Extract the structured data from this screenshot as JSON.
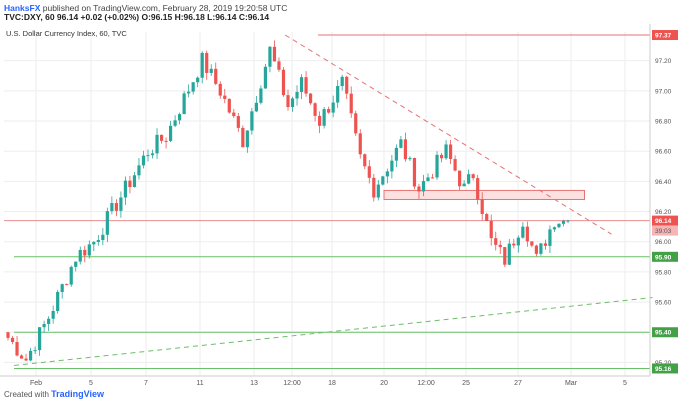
{
  "header": {
    "author": "HanksFX",
    "published_text": " published on TradingView.com, February 28, 2019 19:20:58 UTC",
    "ticker_line": "TVC:DXY, 60  96.14  +0.02 (+0.02%)  O:96.15  H:96.18  L:96.14  C:96.14"
  },
  "footer": {
    "created_with": "Created with",
    "logo": "TradingView"
  },
  "colors": {
    "bull": "#26a69a",
    "bear": "#ef5350",
    "level_green": "#6abf69",
    "red_line": "#e57373",
    "zone_fill": "#fde0e0",
    "label_green": "#43a047",
    "label_red": "#ef5350"
  },
  "chart_data": {
    "type": "candlestick",
    "title": "U.S. Dollar Currency Index, 60, TVC",
    "ylim": [
      95.11,
      97.39
    ],
    "ytick_values": [
      95.2,
      95.4,
      95.6,
      95.8,
      96.0,
      96.2,
      96.4,
      96.6,
      96.8,
      97.0,
      97.2
    ],
    "ytick_labels": [
      "95.20",
      "95.40",
      "95.60",
      "95.80",
      "96.00",
      "96.20",
      "96.40",
      "96.60",
      "96.80",
      "97.00",
      "97.20"
    ],
    "xtick_labels": [
      "Feb",
      "5",
      "7",
      "11",
      "13",
      "12:00",
      "18",
      "20",
      "12:00",
      "25",
      "27",
      "Mar",
      "5"
    ],
    "levels": [
      {
        "name": "resistance-97-37",
        "value": 97.37,
        "label": "97.37",
        "color": "red"
      },
      {
        "name": "support-95-90",
        "value": 95.9,
        "label": "95.90",
        "color": "green"
      },
      {
        "name": "support-95-40",
        "value": 95.4,
        "label": "95.40",
        "color": "green"
      },
      {
        "name": "support-95-16",
        "value": 95.16,
        "label": "95.16",
        "color": "green"
      }
    ],
    "current_price": {
      "value": 96.14,
      "label": "96.14",
      "countdown": "39:03"
    },
    "zone": {
      "from_date": "2019-02-20",
      "to_date": "2019-03-02",
      "low": 96.28,
      "high": 96.34
    },
    "trendlines": [
      {
        "name": "descending-trendline",
        "from_date": "2019-02-15",
        "from_value": 97.37,
        "to_date": "2019-03-04",
        "to_value": 96.05
      },
      {
        "name": "ascending-trendline",
        "from_date": "2019-02-01",
        "from_value": 95.18,
        "to_date": "2019-03-06",
        "to_value": 95.63
      }
    ],
    "path_points": [
      [
        95.4,
        2
      ],
      [
        95.22,
        5
      ],
      [
        95.5,
        5
      ],
      [
        95.9,
        6
      ],
      [
        96.0,
        4
      ],
      [
        96.3,
        6
      ],
      [
        96.6,
        6
      ],
      [
        96.7,
        4
      ],
      [
        97.2,
        8
      ],
      [
        97.0,
        4
      ],
      [
        96.67,
        5
      ],
      [
        97.27,
        6
      ],
      [
        96.9,
        4
      ],
      [
        97.05,
        3
      ],
      [
        96.8,
        4
      ],
      [
        97.05,
        5
      ],
      [
        96.55,
        4
      ],
      [
        96.35,
        3
      ],
      [
        96.65,
        6
      ],
      [
        96.35,
        4
      ],
      [
        96.6,
        6
      ],
      [
        96.35,
        4
      ],
      [
        96.45,
        2
      ],
      [
        96.0,
        4
      ],
      [
        95.88,
        3
      ],
      [
        96.15,
        4
      ],
      [
        95.88,
        3
      ],
      [
        96.15,
        4
      ],
      [
        96.14,
        2
      ]
    ]
  }
}
